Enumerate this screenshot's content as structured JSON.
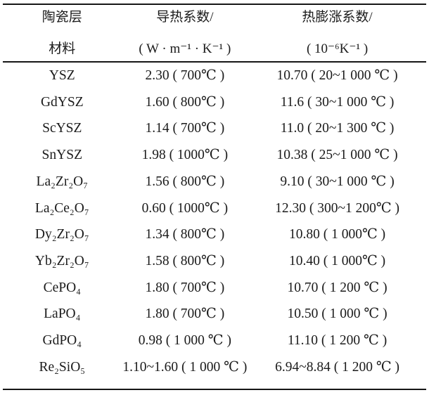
{
  "colors": {
    "background": "#ffffff",
    "text": "#1b1b1b",
    "rule": "#161616"
  },
  "table": {
    "header": {
      "material": {
        "line1": "陶瓷层",
        "line2": "材料"
      },
      "conductivity": {
        "line1": "导热系数/",
        "line2": "( W · m⁻¹ · K⁻¹ )"
      },
      "expansion": {
        "line1": "热膨涨系数/",
        "line2": "( 10⁻⁶K⁻¹ )"
      }
    },
    "rows": [
      {
        "material": "YSZ",
        "conductivity": "2.30 ( 700℃ )",
        "expansion": "10.70 ( 20~1 000 ℃ )"
      },
      {
        "material": "GdYSZ",
        "conductivity": "1.60 ( 800℃ )",
        "expansion": "11.6 ( 30~1 000 ℃ )"
      },
      {
        "material": "ScYSZ",
        "conductivity": "1.14 ( 700℃ )",
        "expansion": "11.0 ( 20~1 300 ℃ )"
      },
      {
        "material": "SnYSZ",
        "conductivity": "1.98 ( 1000℃ )",
        "expansion": "10.38 ( 25~1 000 ℃ )"
      },
      {
        "material": "La₂Zr₂O₇",
        "conductivity": "1.56 ( 800℃ )",
        "expansion": "9.10 ( 30~1 000 ℃ )"
      },
      {
        "material": "La₂Ce₂O₇",
        "conductivity": "0.60 ( 1000℃ )",
        "expansion": "12.30 ( 300~1 200℃ )"
      },
      {
        "material": "Dy₂Zr₂O₇",
        "conductivity": "1.34 ( 800℃ )",
        "expansion": "10.80 ( 1 000℃ )"
      },
      {
        "material": "Yb₂Zr₂O₇",
        "conductivity": "1.58 ( 800℃ )",
        "expansion": "10.40 ( 1 000℃ )"
      },
      {
        "material": "CePO₄",
        "conductivity": "1.80 ( 700℃ )",
        "expansion": "10.70 ( 1 200 ℃ )"
      },
      {
        "material": "LaPO₄",
        "conductivity": "1.80 ( 700℃ )",
        "expansion": "10.50 ( 1 000 ℃ )"
      },
      {
        "material": "GdPO₄",
        "conductivity": "0.98 ( 1 000 ℃ )",
        "expansion": "11.10 ( 1 200 ℃ )"
      },
      {
        "material": "Re₂SiO₅",
        "conductivity": "1.10~1.60 ( 1 000 ℃ )",
        "expansion": "6.94~8.84 ( 1 200 ℃ )"
      }
    ]
  }
}
